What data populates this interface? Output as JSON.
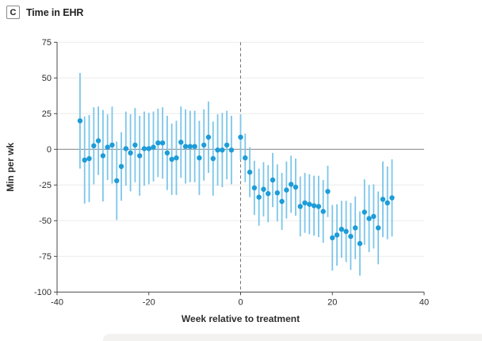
{
  "figure": {
    "panel_label": "C",
    "title": "Time in EHR"
  },
  "chart_data": {
    "type": "scatter",
    "subtype": "event-study point estimates with 95% CI error bars",
    "panel_label": "C",
    "title": "Time in EHR",
    "xlabel": "Week relative to treatment",
    "ylabel": "Min per wk",
    "xlim": [
      -40,
      40
    ],
    "ylim": [
      -100,
      75
    ],
    "xticks": [
      -40,
      -20,
      0,
      20,
      40
    ],
    "yticks": [
      75,
      50,
      25,
      0,
      -25,
      -50,
      -75,
      -100
    ],
    "grid": "horizontal light gridlines at every 25",
    "zero_line_y": 0,
    "reference_line_x": 0,
    "reference_line_style": "dashed",
    "legend_position": "none",
    "omitted_reference_week": -1,
    "colors": {
      "point": "#1d9cd8",
      "error_bar": "#7cc6ea",
      "zero_line": "#8f8f8f",
      "grid": "#ebebe9",
      "axis": "#4a4a4a",
      "text": "#2e2e2e",
      "ref_line": "#757575"
    },
    "columns": [
      "week",
      "estimate",
      "ci_low",
      "ci_high"
    ],
    "points": [
      [
        -35,
        20,
        -13.5,
        53.5
      ],
      [
        -34,
        -7.5,
        -38,
        23
      ],
      [
        -33,
        -6.5,
        -37,
        24
      ],
      [
        -32,
        2.5,
        -24.5,
        29.5
      ],
      [
        -31,
        6,
        -18,
        30
      ],
      [
        -30,
        -4.5,
        -36.5,
        27.5
      ],
      [
        -29,
        1.5,
        -21.5,
        24.5
      ],
      [
        -28,
        3,
        -24,
        30
      ],
      [
        -27,
        -22,
        -49.5,
        5.5
      ],
      [
        -26,
        -12,
        -36,
        12
      ],
      [
        -25,
        0.5,
        -25.5,
        26.5
      ],
      [
        -24,
        -2.5,
        -29.5,
        24.5
      ],
      [
        -23,
        3,
        -23,
        29
      ],
      [
        -22,
        -4.5,
        -32.5,
        23.5
      ],
      [
        -21,
        0.5,
        -25.5,
        26.5
      ],
      [
        -20,
        0.5,
        -24.5,
        25.5
      ],
      [
        -19,
        1.5,
        -22.5,
        26.5
      ],
      [
        -18,
        4.5,
        -19.5,
        28.5
      ],
      [
        -17,
        4.5,
        -20.5,
        29.5
      ],
      [
        -16,
        -2.5,
        -28.5,
        23.5
      ],
      [
        -15,
        -7,
        -32,
        18
      ],
      [
        -14,
        -6,
        -32,
        20
      ],
      [
        -13,
        5,
        -20,
        30
      ],
      [
        -12,
        2,
        -24,
        28
      ],
      [
        -11,
        2,
        -23,
        27
      ],
      [
        -10,
        2,
        -23,
        27
      ],
      [
        -9,
        -6,
        -32,
        20
      ],
      [
        -8,
        3,
        -22,
        28
      ],
      [
        -7,
        8.5,
        -16.5,
        33.5
      ],
      [
        -6,
        -6.5,
        -32.5,
        19.5
      ],
      [
        -5,
        -0.5,
        -25.5,
        24.5
      ],
      [
        -4,
        -0.5,
        -26.5,
        25.5
      ],
      [
        -3,
        3,
        -21,
        27
      ],
      [
        -2,
        -0.5,
        -24.5,
        23.5
      ],
      [
        0,
        8.5,
        -7.5,
        24.5
      ],
      [
        1,
        -6,
        -23,
        11
      ],
      [
        2,
        -16,
        -33.5,
        1.5
      ],
      [
        3,
        -27,
        -46,
        -8
      ],
      [
        4,
        -33.5,
        -53.5,
        -13.5
      ],
      [
        5,
        -28,
        -47,
        -9
      ],
      [
        6,
        -31,
        -51,
        -11
      ],
      [
        7,
        -21.5,
        -40.5,
        -2.5
      ],
      [
        8,
        -30.5,
        -50.5,
        -10.5
      ],
      [
        9,
        -36.5,
        -56.5,
        -16.5
      ],
      [
        10,
        -28.5,
        -48.5,
        -8.5
      ],
      [
        11,
        -24.5,
        -44.5,
        -4.5
      ],
      [
        12,
        -26.5,
        -46.5,
        -6.5
      ],
      [
        13,
        -40,
        -61,
        -19
      ],
      [
        14,
        -37.5,
        -58.5,
        -16.5
      ],
      [
        15,
        -38.5,
        -59.5,
        -17.5
      ],
      [
        16,
        -39.5,
        -60.5,
        -18.5
      ],
      [
        17,
        -40,
        -61.5,
        -18.5
      ],
      [
        18,
        -43.5,
        -65.5,
        -21.5
      ],
      [
        19,
        -29.5,
        -47.5,
        -11.5
      ],
      [
        20,
        -62,
        -85,
        -39
      ],
      [
        21,
        -60,
        -81.5,
        -38.5
      ],
      [
        22,
        -56,
        -76,
        -36
      ],
      [
        23,
        -57.5,
        -79,
        -36
      ],
      [
        24,
        -61,
        -84.5,
        -37.5
      ],
      [
        25,
        -55,
        -77,
        -33
      ],
      [
        26,
        -66,
        -88.5,
        -43.5
      ],
      [
        27,
        -44,
        -67,
        -21
      ],
      [
        28,
        -48.5,
        -72,
        -25
      ],
      [
        29,
        -47,
        -69.5,
        -24.5
      ],
      [
        30,
        -55,
        -80.5,
        -29.5
      ],
      [
        31,
        -35,
        -61.5,
        -8.5
      ],
      [
        32,
        -37.5,
        -63,
        -12
      ],
      [
        33,
        -34,
        -61,
        -7
      ]
    ]
  }
}
